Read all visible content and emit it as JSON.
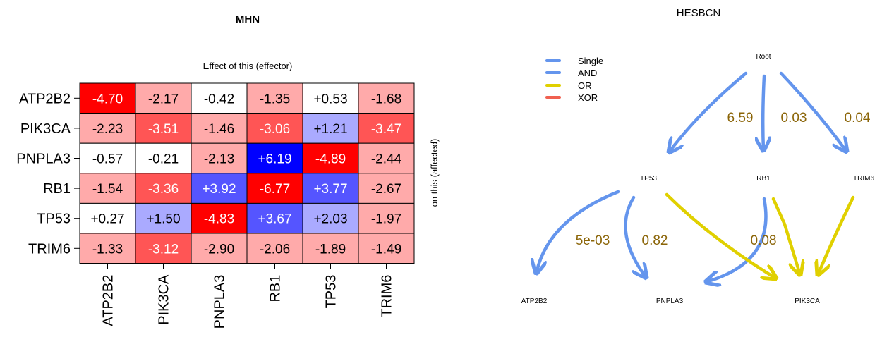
{
  "chart_data": [
    {
      "type": "heatmap",
      "title": "MHN",
      "xlabel": "Effect of this (effector)",
      "ylabel": "on this (affected)",
      "rows": [
        "ATP2B2",
        "PIK3CA",
        "PNPLA3",
        "RB1",
        "TP53",
        "TRIM6"
      ],
      "cols": [
        "ATP2B2",
        "PIK3CA",
        "PNPLA3",
        "RB1",
        "TP53",
        "TRIM6"
      ],
      "values": [
        [
          -4.7,
          -2.17,
          -0.42,
          -1.35,
          0.53,
          -1.68
        ],
        [
          -2.23,
          -3.51,
          -1.46,
          -3.06,
          1.21,
          -3.47
        ],
        [
          -0.57,
          -0.21,
          -2.13,
          6.19,
          -4.89,
          -2.44
        ],
        [
          -1.54,
          -3.36,
          3.92,
          -6.77,
          3.77,
          -2.67
        ],
        [
          0.27,
          1.5,
          -4.83,
          3.67,
          2.03,
          -1.97
        ],
        [
          -1.33,
          -3.12,
          -2.9,
          -2.06,
          -1.89,
          -1.49
        ]
      ],
      "labels": [
        [
          "-4.70",
          "-2.17",
          "-0.42",
          "-1.35",
          "+0.53",
          "-1.68"
        ],
        [
          "-2.23",
          "-3.51",
          "-1.46",
          "-3.06",
          "+1.21",
          "-3.47"
        ],
        [
          "-0.57",
          "-0.21",
          "-2.13",
          "+6.19",
          "-4.89",
          "-2.44"
        ],
        [
          "-1.54",
          "-3.36",
          "+3.92",
          "-6.77",
          "+3.77",
          "-2.67"
        ],
        [
          "+0.27",
          "+1.50",
          "-4.83",
          "+3.67",
          "+2.03",
          "-1.97"
        ],
        [
          "-1.33",
          "-3.12",
          "-2.90",
          "-2.06",
          "-1.89",
          "-1.49"
        ]
      ],
      "colors": {
        "strong_negative": "#ff0000",
        "negative": "#ff5555",
        "weak_negative": "#ffaaaa",
        "neutral": "#ffffff",
        "weak_positive": "#aaaaff",
        "positive": "#5555ff",
        "strong_positive": "#0000ff"
      }
    },
    {
      "type": "graph",
      "title": "HESBCN",
      "legend": [
        {
          "name": "Single",
          "color": "#6495ed"
        },
        {
          "name": "AND",
          "color": "#6495ed"
        },
        {
          "name": "OR",
          "color": "#e0d000"
        },
        {
          "name": "XOR",
          "color": "#f06050"
        }
      ],
      "nodes": [
        "Root",
        "TP53",
        "RB1",
        "TRIM6",
        "ATP2B2",
        "PNPLA3",
        "PIK3CA"
      ],
      "edges": [
        {
          "from": "Root",
          "to": "TP53",
          "type": "Single",
          "label": "6.59"
        },
        {
          "from": "Root",
          "to": "RB1",
          "type": "Single",
          "label": "0.03"
        },
        {
          "from": "Root",
          "to": "TRIM6",
          "type": "Single",
          "label": "0.04"
        },
        {
          "from": "TP53",
          "to": "ATP2B2",
          "type": "Single",
          "label": "5e-03"
        },
        {
          "from": "TP53",
          "to": "PNPLA3",
          "type": "Single",
          "label": "0.82"
        },
        {
          "from": "RB1",
          "to": "PNPLA3",
          "type": "Single",
          "label": ""
        },
        {
          "from": "TP53",
          "to": "PIK3CA",
          "type": "OR",
          "label": ""
        },
        {
          "from": "RB1",
          "to": "PIK3CA",
          "type": "OR",
          "label": "0.08"
        },
        {
          "from": "TRIM6",
          "to": "PIK3CA",
          "type": "OR",
          "label": ""
        }
      ],
      "label_color": "#8b6508"
    }
  ]
}
